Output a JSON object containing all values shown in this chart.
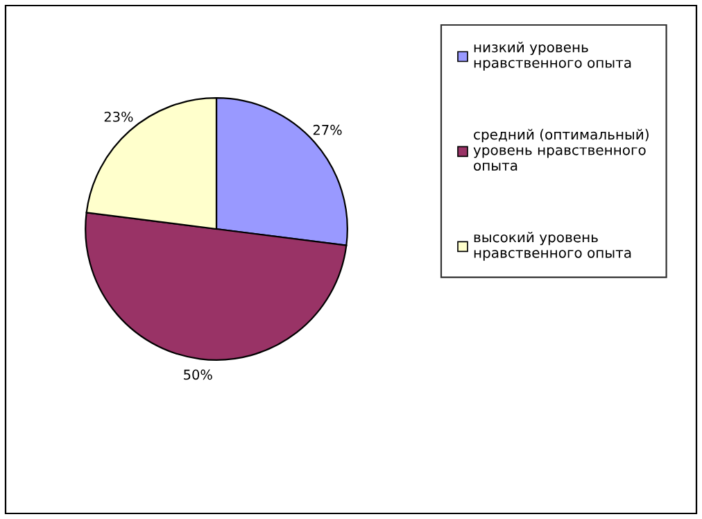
{
  "chart_data": {
    "type": "pie",
    "categories": [
      "низкий уровень\nнравственного опыта",
      "средний (оптимальный)\nуровень нравственного\nопыта",
      "высокий уровень\nнравственного опыта"
    ],
    "values": [
      27,
      50,
      23
    ],
    "colors": [
      "#9999ff",
      "#993366",
      "#ffffcc"
    ],
    "value_labels": [
      "27%",
      "50%",
      "23%"
    ],
    "legend": "right"
  }
}
